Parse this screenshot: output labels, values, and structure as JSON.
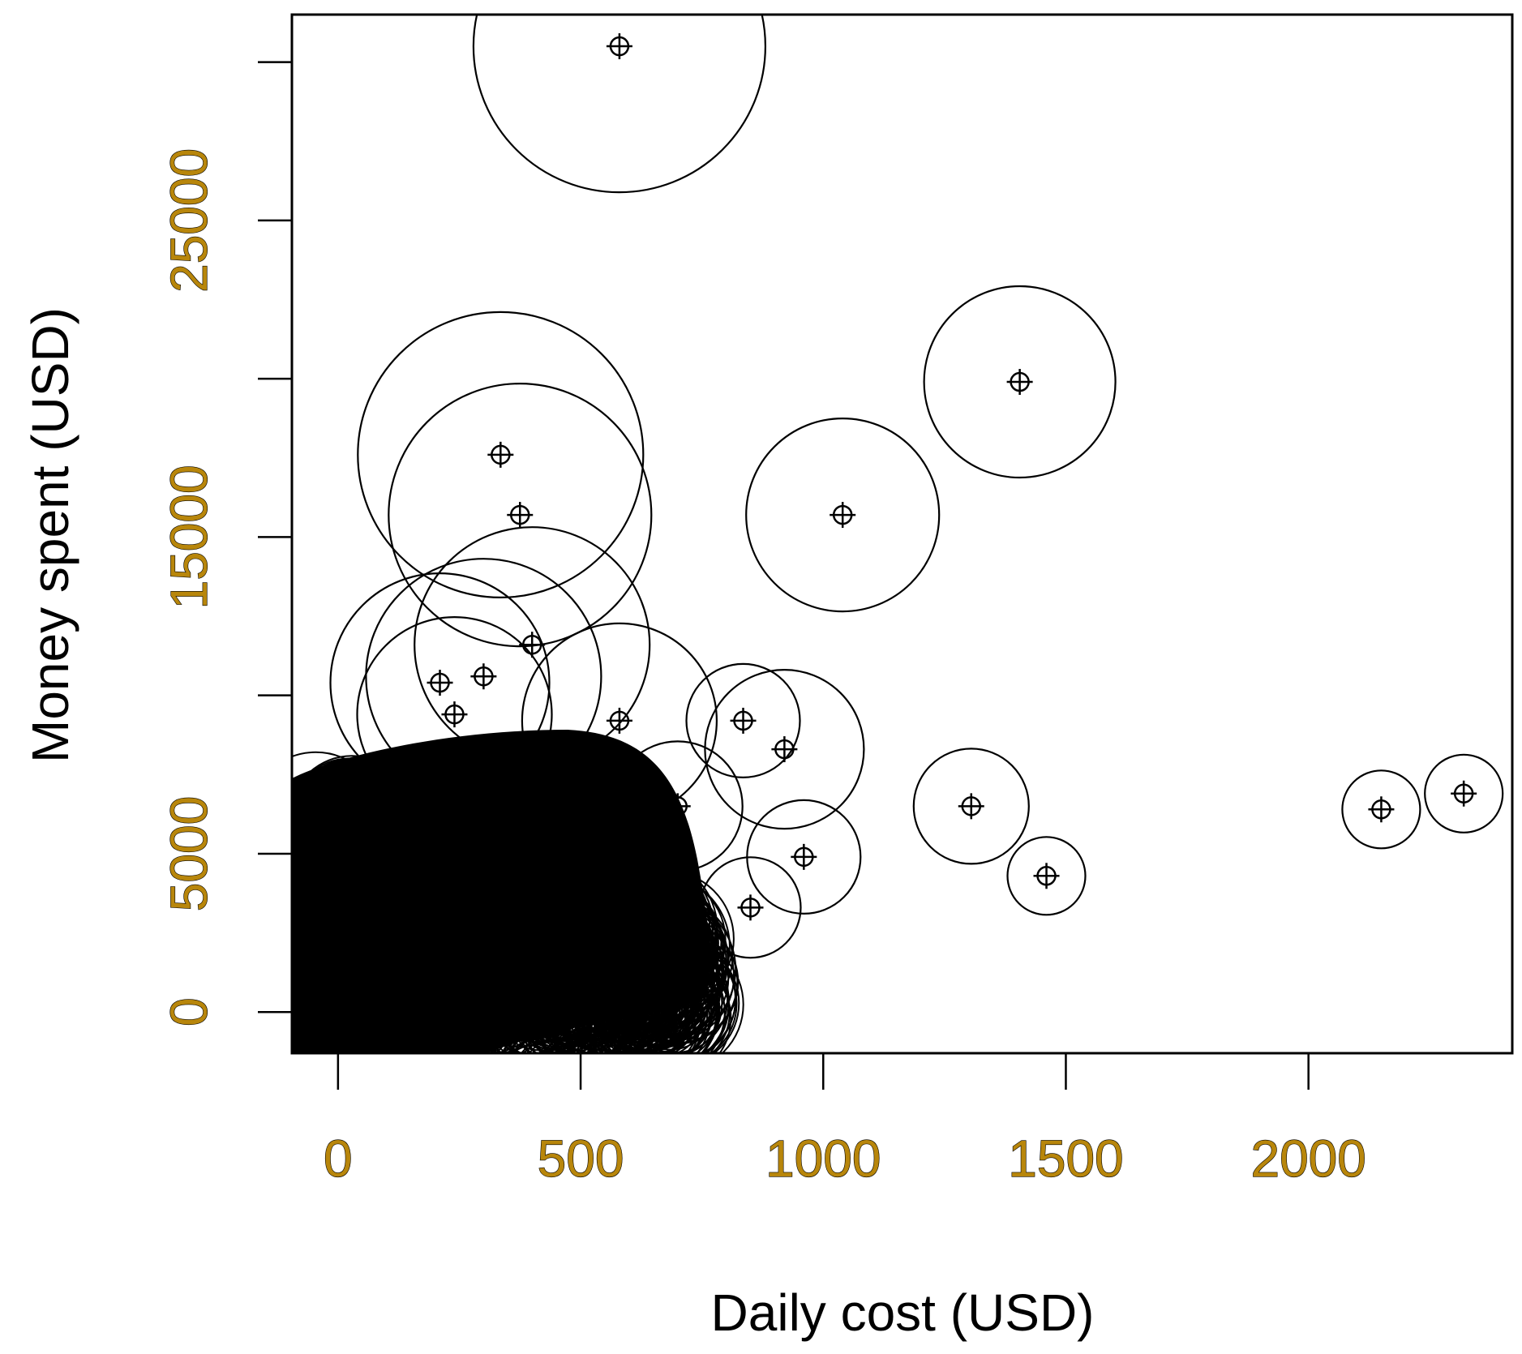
{
  "chart_data": {
    "type": "scatter",
    "title": "",
    "xlabel": "Daily cost (USD)",
    "ylabel": "Money spent (USD)",
    "xlim": [
      -95,
      2420
    ],
    "ylim": [
      -1300,
      31500
    ],
    "x_ticks": [
      0,
      500,
      1000,
      1500,
      2000
    ],
    "y_ticks": [
      0,
      5000,
      10000,
      15000,
      20000,
      25000,
      30000
    ],
    "y_tick_labels": [
      "0",
      "5000",
      "",
      "15000",
      "",
      "25000",
      ""
    ],
    "marker": "crosshair-plus with circle of size proportional to value",
    "grid": false,
    "legend": "none",
    "colors": {
      "tick_label": "#b8860b",
      "marks": "#000000"
    },
    "points": [
      {
        "x": 580,
        "y": 30500,
        "r": 180
      },
      {
        "x": 1405,
        "y": 19900,
        "r": 118
      },
      {
        "x": 1040,
        "y": 15700,
        "r": 119
      },
      {
        "x": 335,
        "y": 17600,
        "r": 176
      },
      {
        "x": 375,
        "y": 15700,
        "r": 162
      },
      {
        "x": 400,
        "y": 11600,
        "r": 145
      },
      {
        "x": 300,
        "y": 10600,
        "r": 145
      },
      {
        "x": 210,
        "y": 10400,
        "r": 135
      },
      {
        "x": 240,
        "y": 9400,
        "r": 120
      },
      {
        "x": 580,
        "y": 9200,
        "r": 120
      },
      {
        "x": 835,
        "y": 9200,
        "r": 70
      },
      {
        "x": 920,
        "y": 8300,
        "r": 98
      },
      {
        "x": 700,
        "y": 6500,
        "r": 80
      },
      {
        "x": 960,
        "y": 4900,
        "r": 70
      },
      {
        "x": 850,
        "y": 3300,
        "r": 62
      },
      {
        "x": 1305,
        "y": 6500,
        "r": 71
      },
      {
        "x": 1460,
        "y": 4300,
        "r": 48
      },
      {
        "x": 2150,
        "y": 6400,
        "r": 48
      },
      {
        "x": 2320,
        "y": 6900,
        "r": 48
      }
    ]
  }
}
